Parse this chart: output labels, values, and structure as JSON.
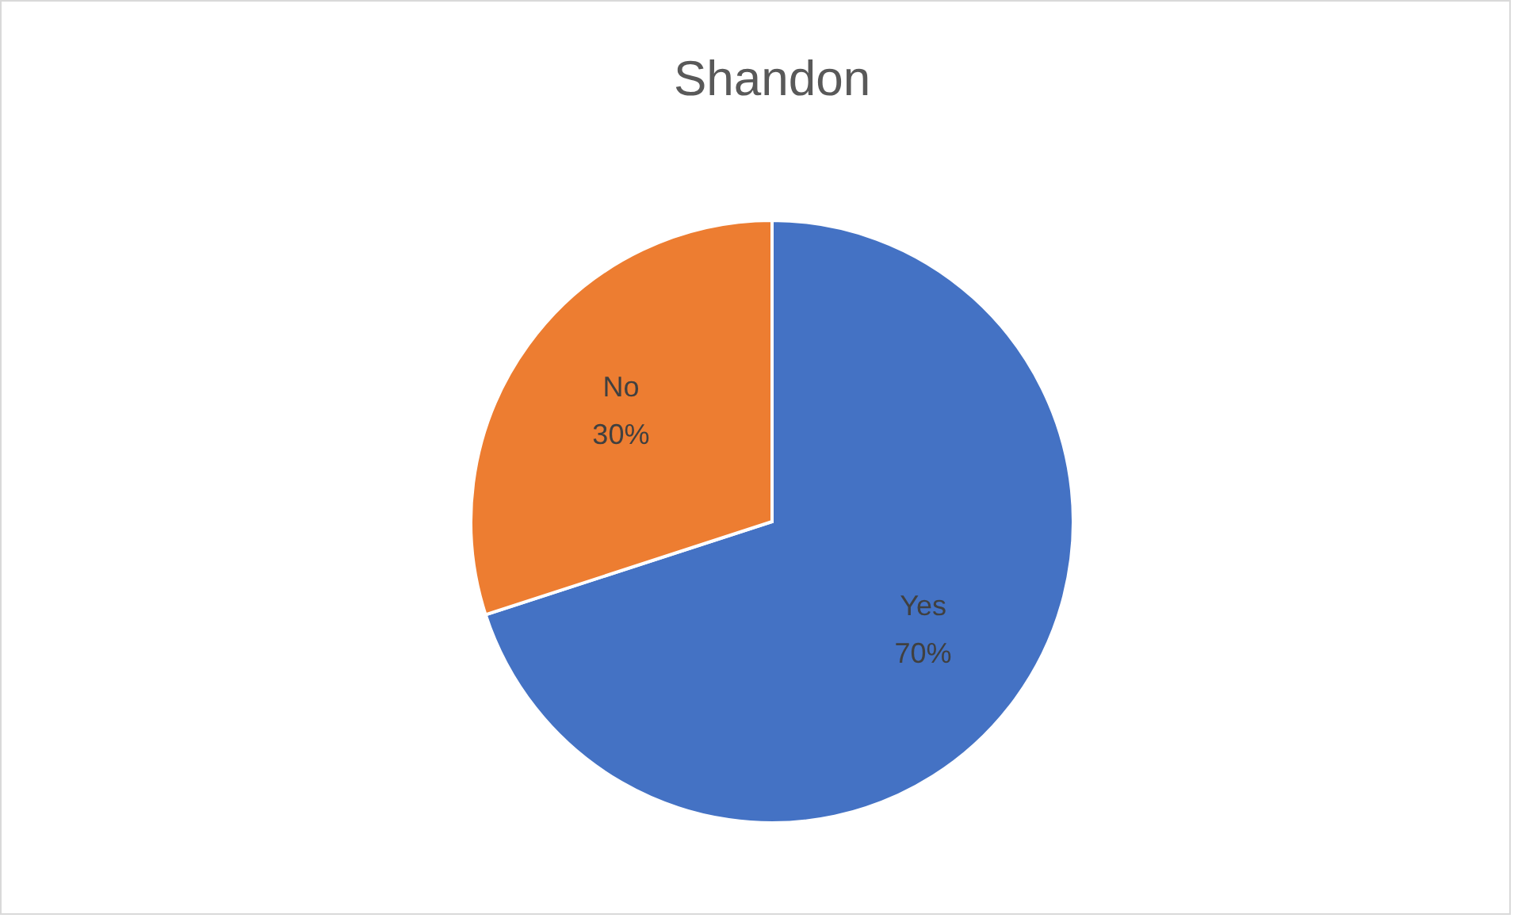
{
  "chart_data": {
    "type": "pie",
    "title": "Shandon",
    "categories": [
      "Yes",
      "No"
    ],
    "values": [
      70,
      30
    ],
    "colors": [
      "#4472c4",
      "#ed7d31"
    ],
    "value_labels": [
      "70%",
      "30%"
    ],
    "legend": false
  }
}
